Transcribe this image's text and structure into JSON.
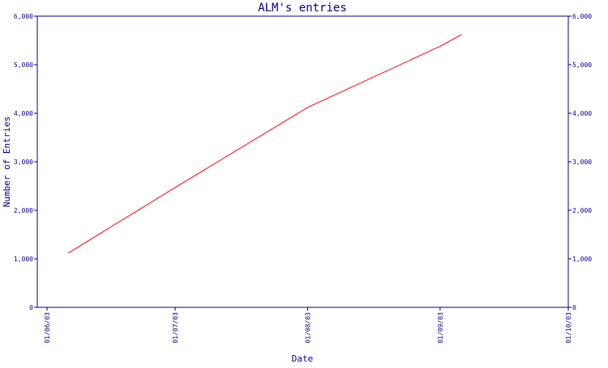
{
  "chart_data": {
    "type": "line",
    "title": "ALM's entries",
    "xlabel": "Date",
    "ylabel": "Number of Entries",
    "x_ticks": [
      "01/06/03",
      "01/07/03",
      "01/08/03",
      "01/09/03",
      "01/10/03"
    ],
    "y_ticks": [
      "0",
      "1,000",
      "2,000",
      "3,000",
      "4,000",
      "5,000",
      "6,000"
    ],
    "ylim": [
      0,
      6000
    ],
    "xlim": [
      "2003-06-01",
      "2003-10-01"
    ],
    "grid": false,
    "series": [
      {
        "color": "#ff0000",
        "points": [
          {
            "x": "2003-06-06",
            "y": 1120
          },
          {
            "x": "2003-07-01",
            "y": 2470
          },
          {
            "x": "2003-08-01",
            "y": 4120
          },
          {
            "x": "2003-09-01",
            "y": 5380
          },
          {
            "x": "2003-09-06",
            "y": 5620
          }
        ]
      }
    ],
    "colors": {
      "axis": "#000080",
      "line": "#ff0000"
    }
  }
}
